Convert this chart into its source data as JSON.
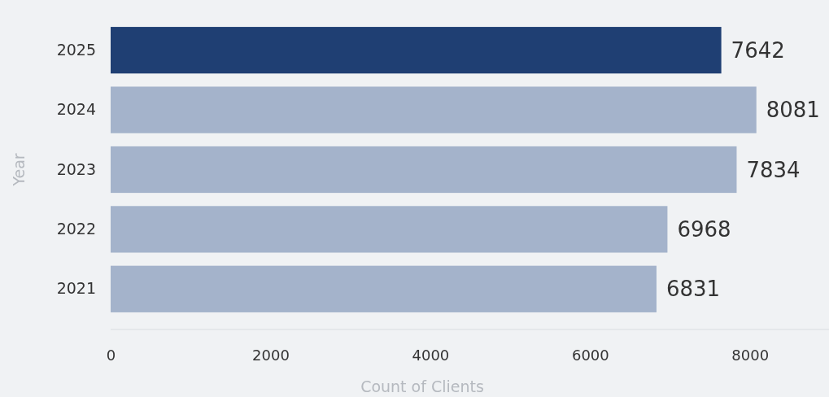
{
  "chart_data": {
    "type": "bar",
    "orientation": "horizontal",
    "xlabel": "Count of Clients",
    "ylabel": "Year",
    "categories": [
      "2025",
      "2024",
      "2023",
      "2022",
      "2021"
    ],
    "values": [
      7642,
      8081,
      7834,
      6968,
      6831
    ],
    "colors": [
      "#1f3f73",
      "#a4b3cb",
      "#a4b3cb",
      "#a4b3cb",
      "#a4b3cb"
    ],
    "xlim": [
      0,
      9000
    ],
    "xticks": [
      0,
      2000,
      4000,
      6000,
      8000
    ],
    "data_labels": true,
    "grid": false
  }
}
